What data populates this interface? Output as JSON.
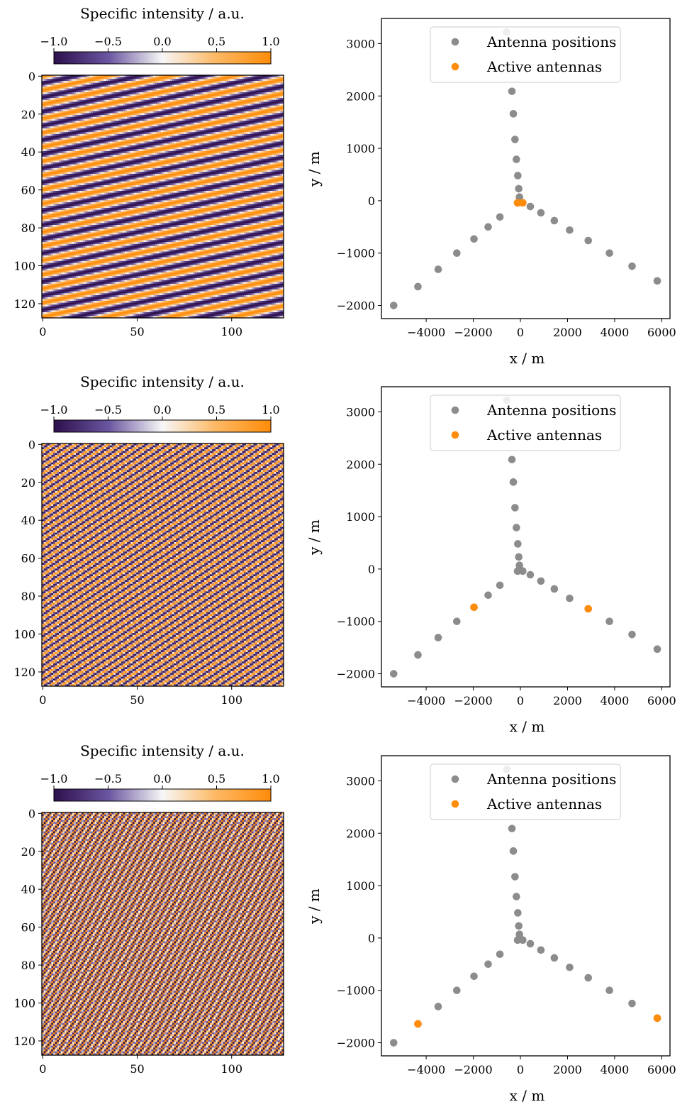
{
  "chart_data": [
    {
      "type": "heatmap",
      "colorbar": {
        "label": "Specific intensity / a.u.",
        "ticks": [
          -1.0,
          -0.5,
          0.0,
          0.5,
          1.0
        ],
        "tick_labels": [
          "−1.0",
          "−0.5",
          "0.0",
          "0.5",
          "1.0"
        ],
        "range": [
          -1.0,
          1.0
        ],
        "colormap": [
          "#2d0f4c",
          "#6a55a0",
          "#f7f7f7",
          "#fdb863",
          "#ff8c0a"
        ]
      },
      "image": {
        "size": 128,
        "pattern": "cos(2*pi*(0.0297*x + 0.1338*y))",
        "freq_x": 0.0297,
        "freq_y": 0.1338
      },
      "xlim": [
        0,
        127
      ],
      "ylim": [
        127,
        0
      ],
      "xticks": [
        0,
        50,
        100
      ],
      "yticks": [
        0,
        20,
        40,
        60,
        80,
        100,
        120
      ]
    },
    {
      "type": "scatter",
      "xlabel": "x / m",
      "ylabel": "y / m",
      "xlim": [
        -5900,
        6350
      ],
      "ylim": [
        -2250,
        3480
      ],
      "xticks": [
        -4000,
        -2000,
        0,
        2000,
        4000,
        6000
      ],
      "xtick_labels": [
        "−4000",
        "−2000",
        "0",
        "2000",
        "4000",
        "6000"
      ],
      "yticks": [
        -2000,
        -1000,
        0,
        1000,
        2000,
        3000
      ],
      "ytick_labels": [
        "−2000",
        "−1000",
        "0",
        "1000",
        "2000",
        "3000"
      ],
      "legend": {
        "placement": "top-right",
        "entries": [
          "Antenna positions",
          "Active antennas"
        ]
      },
      "series": [
        {
          "name": "Antenna positions",
          "color": "#8c8c8c",
          "points": [
            [
              -580,
              3220
            ],
            [
              -360,
              2090
            ],
            [
              -300,
              1660
            ],
            [
              -230,
              1170
            ],
            [
              -170,
              790
            ],
            [
              -110,
              480
            ],
            [
              -70,
              230
            ],
            [
              -40,
              70
            ],
            [
              -120,
              -40
            ],
            [
              100,
              -40
            ],
            [
              -870,
              -310
            ],
            [
              -1370,
              -500
            ],
            [
              -1970,
              -730
            ],
            [
              -2700,
              -1000
            ],
            [
              -3490,
              -1310
            ],
            [
              -4350,
              -1640
            ],
            [
              -5380,
              -2000
            ],
            [
              420,
              -110
            ],
            [
              870,
              -230
            ],
            [
              1440,
              -380
            ],
            [
              2090,
              -560
            ],
            [
              2880,
              -760
            ],
            [
              3780,
              -1000
            ],
            [
              4740,
              -1250
            ],
            [
              5810,
              -1530
            ]
          ]
        },
        {
          "name": "Active antennas",
          "color": "#ff8c0a",
          "points": [
            [
              -120,
              -40
            ],
            [
              100,
              -40
            ]
          ]
        }
      ]
    },
    {
      "type": "heatmap",
      "colorbar": {
        "label": "Specific intensity / a.u.",
        "ticks": [
          -1.0,
          -0.5,
          0.0,
          0.5,
          1.0
        ],
        "tick_labels": [
          "−1.0",
          "−0.5",
          "0.0",
          "0.5",
          "1.0"
        ],
        "range": [
          -1.0,
          1.0
        ],
        "colormap": [
          "#2d0f4c",
          "#6a55a0",
          "#f7f7f7",
          "#fdb863",
          "#ff8c0a"
        ]
      },
      "image": {
        "size": 128,
        "pattern": "cos(2*pi*(0.1734*x - 0.7383*y))",
        "freq_x": 0.1734,
        "freq_y": -0.7383
      },
      "xlim": [
        0,
        127
      ],
      "ylim": [
        127,
        0
      ],
      "xticks": [
        0,
        50,
        100
      ],
      "yticks": [
        0,
        20,
        40,
        60,
        80,
        100,
        120
      ]
    },
    {
      "type": "scatter",
      "xlabel": "x / m",
      "ylabel": "y / m",
      "xlim": [
        -5900,
        6350
      ],
      "ylim": [
        -2250,
        3480
      ],
      "xticks": [
        -4000,
        -2000,
        0,
        2000,
        4000,
        6000
      ],
      "xtick_labels": [
        "−4000",
        "−2000",
        "0",
        "2000",
        "4000",
        "6000"
      ],
      "yticks": [
        -2000,
        -1000,
        0,
        1000,
        2000,
        3000
      ],
      "ytick_labels": [
        "−2000",
        "−1000",
        "0",
        "1000",
        "2000",
        "3000"
      ],
      "legend": {
        "placement": "top-right",
        "entries": [
          "Antenna positions",
          "Active antennas"
        ]
      },
      "series": [
        {
          "name": "Antenna positions",
          "color": "#8c8c8c",
          "points": [
            [
              -580,
              3220
            ],
            [
              -360,
              2090
            ],
            [
              -300,
              1660
            ],
            [
              -230,
              1170
            ],
            [
              -170,
              790
            ],
            [
              -110,
              480
            ],
            [
              -70,
              230
            ],
            [
              -40,
              70
            ],
            [
              -120,
              -40
            ],
            [
              100,
              -40
            ],
            [
              -870,
              -310
            ],
            [
              -1370,
              -500
            ],
            [
              -1970,
              -730
            ],
            [
              -2700,
              -1000
            ],
            [
              -3490,
              -1310
            ],
            [
              -4350,
              -1640
            ],
            [
              -5380,
              -2000
            ],
            [
              420,
              -110
            ],
            [
              870,
              -230
            ],
            [
              1440,
              -380
            ],
            [
              2090,
              -560
            ],
            [
              2880,
              -760
            ],
            [
              3780,
              -1000
            ],
            [
              4740,
              -1250
            ],
            [
              5810,
              -1530
            ]
          ]
        },
        {
          "name": "Active antennas",
          "color": "#ff8c0a",
          "points": [
            [
              -1970,
              -730
            ],
            [
              2880,
              -760
            ]
          ]
        }
      ]
    },
    {
      "type": "heatmap",
      "colorbar": {
        "label": "Specific intensity / a.u.",
        "ticks": [
          -1.0,
          -0.5,
          0.0,
          0.5,
          1.0
        ],
        "tick_labels": [
          "−1.0",
          "−0.5",
          "0.0",
          "0.5",
          "1.0"
        ],
        "range": [
          -1.0,
          1.0
        ],
        "colormap": [
          "#2d0f4c",
          "#6a55a0",
          "#f7f7f7",
          "#fdb863",
          "#ff8c0a"
        ]
      },
      "image": {
        "size": 128,
        "pattern": "cos(2*pi*(0.3609*x + 1.4297*y))",
        "freq_x": 0.3609,
        "freq_y": 1.4297
      },
      "xlim": [
        0,
        127
      ],
      "ylim": [
        127,
        0
      ],
      "xticks": [
        0,
        50,
        100
      ],
      "yticks": [
        0,
        20,
        40,
        60,
        80,
        100,
        120
      ]
    },
    {
      "type": "scatter",
      "xlabel": "x / m",
      "ylabel": "y / m",
      "xlim": [
        -5900,
        6350
      ],
      "ylim": [
        -2250,
        3480
      ],
      "xticks": [
        -4000,
        -2000,
        0,
        2000,
        4000,
        6000
      ],
      "xtick_labels": [
        "−4000",
        "−2000",
        "0",
        "2000",
        "4000",
        "6000"
      ],
      "yticks": [
        -2000,
        -1000,
        0,
        1000,
        2000,
        3000
      ],
      "ytick_labels": [
        "−2000",
        "−1000",
        "0",
        "1000",
        "2000",
        "3000"
      ],
      "legend": {
        "placement": "top-right",
        "entries": [
          "Antenna positions",
          "Active antennas"
        ]
      },
      "series": [
        {
          "name": "Antenna positions",
          "color": "#8c8c8c",
          "points": [
            [
              -580,
              3220
            ],
            [
              -360,
              2090
            ],
            [
              -300,
              1660
            ],
            [
              -230,
              1170
            ],
            [
              -170,
              790
            ],
            [
              -110,
              480
            ],
            [
              -70,
              230
            ],
            [
              -40,
              70
            ],
            [
              -120,
              -40
            ],
            [
              100,
              -40
            ],
            [
              -870,
              -310
            ],
            [
              -1370,
              -500
            ],
            [
              -1970,
              -730
            ],
            [
              -2700,
              -1000
            ],
            [
              -3490,
              -1310
            ],
            [
              -4350,
              -1640
            ],
            [
              -5380,
              -2000
            ],
            [
              420,
              -110
            ],
            [
              870,
              -230
            ],
            [
              1440,
              -380
            ],
            [
              2090,
              -560
            ],
            [
              2880,
              -760
            ],
            [
              3780,
              -1000
            ],
            [
              4740,
              -1250
            ],
            [
              5810,
              -1530
            ]
          ]
        },
        {
          "name": "Active antennas",
          "color": "#ff8c0a",
          "points": [
            [
              -4350,
              -1640
            ],
            [
              5810,
              -1530
            ]
          ]
        }
      ]
    }
  ]
}
